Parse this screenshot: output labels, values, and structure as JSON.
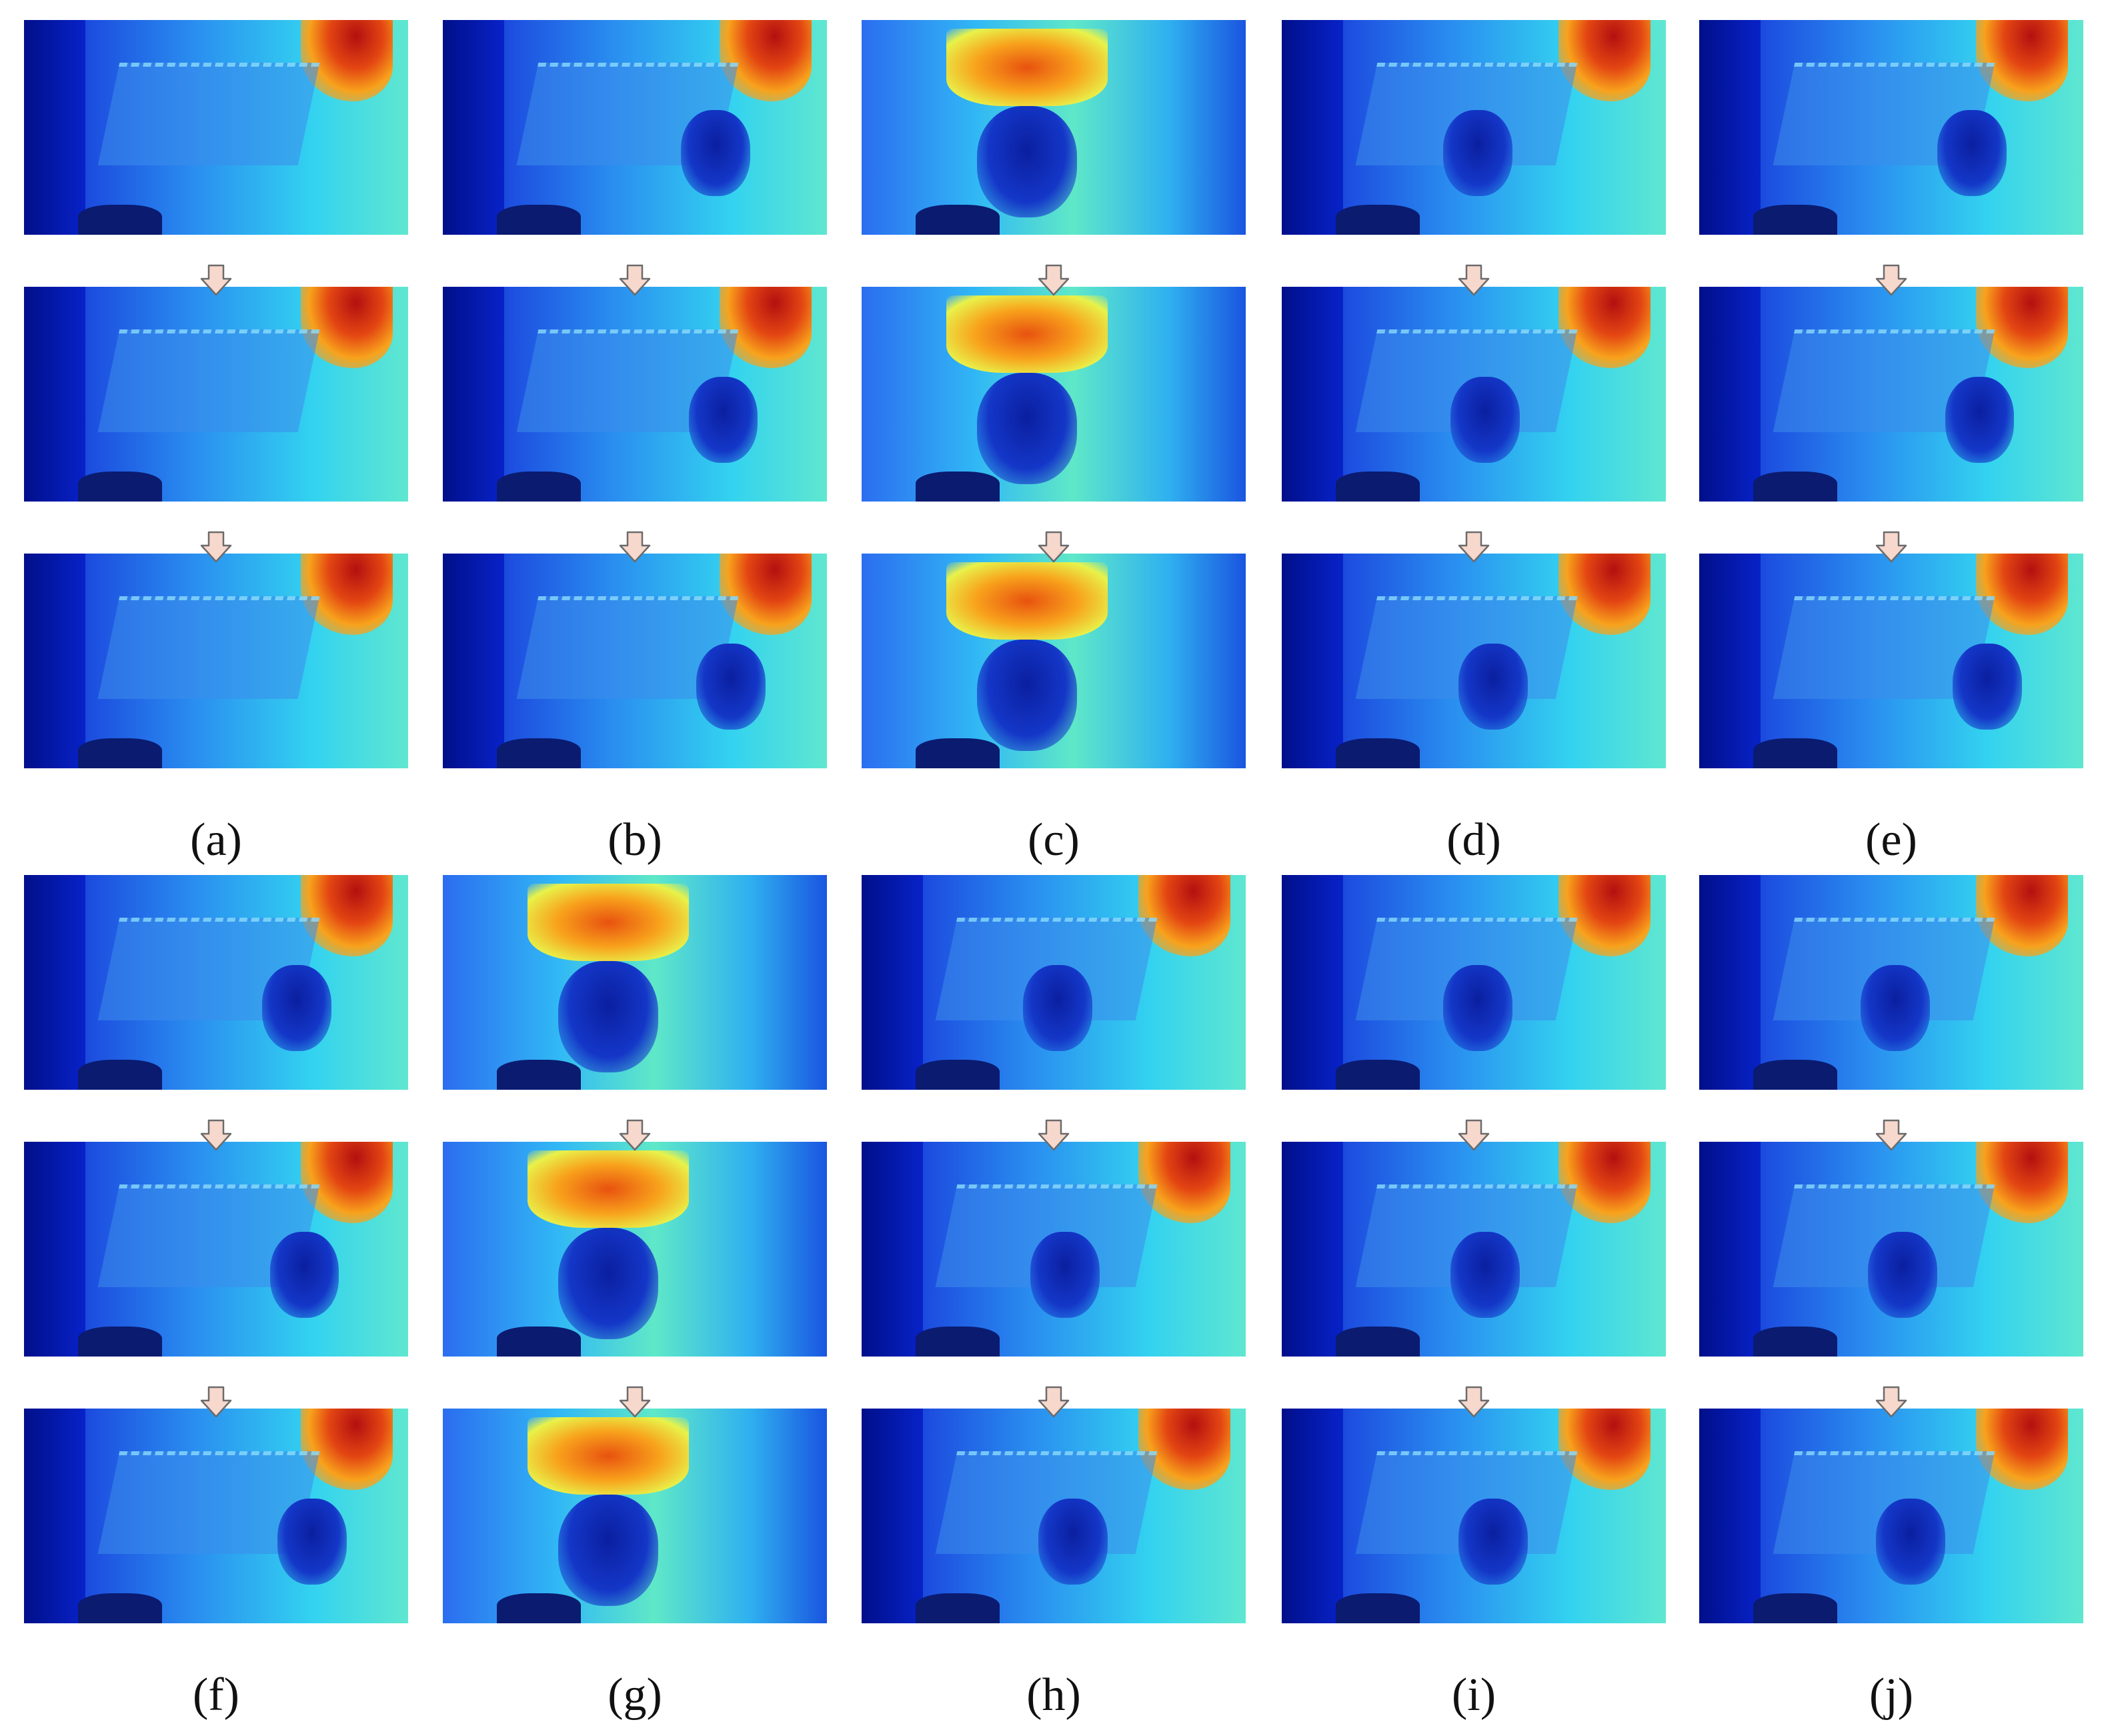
{
  "figure": {
    "panels": [
      {
        "label": "(a)",
        "variant": "room",
        "person_hint": "none"
      },
      {
        "label": "(b)",
        "variant": "room",
        "person_hint": "right"
      },
      {
        "label": "(c)",
        "variant": "warm",
        "person_hint": "center"
      },
      {
        "label": "(d)",
        "variant": "room",
        "person_hint": "mid"
      },
      {
        "label": "(e)",
        "variant": "room",
        "person_hint": "right"
      },
      {
        "label": "(f)",
        "variant": "room",
        "person_hint": "right"
      },
      {
        "label": "(g)",
        "variant": "warm",
        "person_hint": "center"
      },
      {
        "label": "(h)",
        "variant": "room",
        "person_hint": "mid"
      },
      {
        "label": "(i)",
        "variant": "room",
        "person_hint": "mid"
      },
      {
        "label": "(j)",
        "variant": "room",
        "person_hint": "mid"
      }
    ],
    "colors": {
      "arrow_fill": "#f7d8cc",
      "arrow_stroke": "#6b6b6b"
    },
    "icons": {
      "step_arrow": "down-arrow-icon"
    }
  }
}
